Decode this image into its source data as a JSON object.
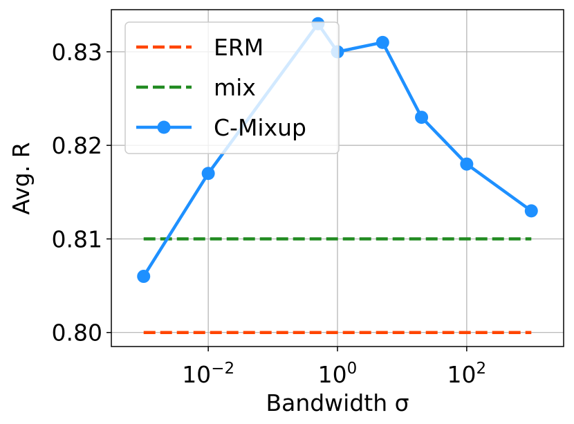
{
  "chart_data": {
    "type": "line",
    "xlabel": "Bandwidth σ",
    "ylabel": "Avg. R",
    "x_scale": "log",
    "x_ticks": [
      {
        "value": 0.01,
        "base": "10",
        "exp": "−2"
      },
      {
        "value": 1,
        "base": "10",
        "exp": "0"
      },
      {
        "value": 100,
        "base": "10",
        "exp": "2"
      }
    ],
    "y_ticks": [
      "0.80",
      "0.81",
      "0.82",
      "0.83"
    ],
    "grid": true,
    "legend_position": "upper-left",
    "series": [
      {
        "name": "ERM",
        "style": "dashed",
        "color": "#ff4500",
        "x": [
          0.001,
          1000
        ],
        "values": [
          0.8,
          0.8
        ]
      },
      {
        "name": "mix",
        "style": "dashed",
        "color": "#228b22",
        "x": [
          0.001,
          1000
        ],
        "values": [
          0.81,
          0.81
        ]
      },
      {
        "name": "C-Mixup",
        "style": "solid-marker",
        "color": "#1e90ff",
        "x": [
          0.001,
          0.01,
          0.5,
          1,
          5,
          20,
          100,
          1000
        ],
        "values": [
          0.806,
          0.817,
          0.833,
          0.83,
          0.831,
          0.823,
          0.818,
          0.813
        ]
      }
    ]
  }
}
